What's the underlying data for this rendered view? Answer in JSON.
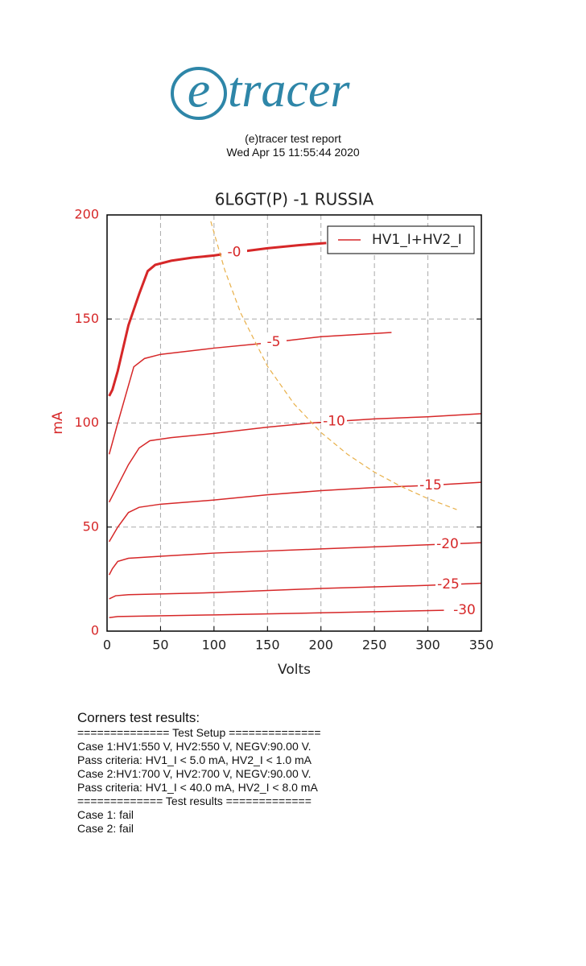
{
  "logo": {
    "e": "e",
    "text": "tracer"
  },
  "header": {
    "title": "(e)tracer test report",
    "date": "Wed Apr 15 11:55:44 2020"
  },
  "chart_data": {
    "type": "line",
    "title": "6L6GT(P) -1 RUSSIA",
    "x_label": "Volts",
    "y_label": "mA",
    "xlim": [
      0,
      350
    ],
    "xticks": [
      0,
      50,
      100,
      150,
      200,
      250,
      300,
      350
    ],
    "ylim": [
      0,
      200
    ],
    "yticks": [
      0,
      50,
      100,
      150,
      200
    ],
    "grid": true,
    "legend": {
      "label": "HV1_I+HV2_I",
      "color": "#d62728",
      "position": "upper right"
    },
    "series": [
      {
        "name": "-0",
        "color": "#d62728",
        "width": 3,
        "x": [
          2,
          5,
          10,
          20,
          30,
          38,
          45,
          60,
          80,
          100,
          120,
          150,
          180,
          205
        ],
        "values": [
          113,
          116,
          125,
          147,
          162,
          173,
          176,
          178,
          179.5,
          180.5,
          182,
          184,
          185.5,
          186.5
        ]
      },
      {
        "name": "-5",
        "color": "#d62728",
        "width": 1.5,
        "x": [
          2,
          10,
          20,
          25,
          35,
          50,
          100,
          150,
          200,
          266
        ],
        "values": [
          85,
          100,
          118,
          127,
          131,
          133,
          136,
          138.5,
          141.5,
          143.5
        ]
      },
      {
        "name": "-10",
        "color": "#d62728",
        "width": 1.5,
        "x": [
          2,
          10,
          20,
          30,
          40,
          60,
          100,
          150,
          190,
          250,
          300,
          350
        ],
        "values": [
          62,
          70,
          80,
          88,
          91.5,
          93,
          95,
          98,
          100,
          102,
          103,
          104.5
        ]
      },
      {
        "name": "-15",
        "color": "#d62728",
        "width": 1.5,
        "x": [
          2,
          10,
          20,
          30,
          50,
          100,
          150,
          200,
          250,
          300,
          350
        ],
        "values": [
          43,
          50,
          57,
          59.5,
          61,
          63,
          65.5,
          67.5,
          69,
          70,
          71.5
        ]
      },
      {
        "name": "-20",
        "color": "#d62728",
        "width": 1.5,
        "x": [
          2,
          5,
          10,
          20,
          50,
          100,
          200,
          300,
          350
        ],
        "values": [
          27,
          30,
          33.5,
          35,
          36,
          37.5,
          39.5,
          41.5,
          42.5
        ]
      },
      {
        "name": "-25",
        "color": "#d62728",
        "width": 1.5,
        "x": [
          2,
          8,
          20,
          100,
          200,
          300,
          350
        ],
        "values": [
          15.5,
          17,
          17.5,
          18.5,
          20.5,
          22,
          23
        ]
      },
      {
        "name": "-30",
        "color": "#d62728",
        "width": 1.5,
        "x": [
          2,
          10,
          100,
          200,
          315
        ],
        "values": [
          6.5,
          7,
          7.8,
          8.8,
          10
        ]
      },
      {
        "color": "#e8b04a",
        "width": 1.2,
        "dashed": true,
        "x": [
          97,
          110,
          125,
          150,
          175,
          200,
          225,
          250,
          275,
          300,
          327
        ],
        "values": [
          196.9,
          173.6,
          152.8,
          127.3,
          109.1,
          95.5,
          84.9,
          76.4,
          69.5,
          63.7,
          58.4
        ]
      }
    ]
  },
  "report": {
    "title": "Corners test results:",
    "lines": [
      "============== Test Setup ==============",
      "Case 1:HV1:550 V, HV2:550 V, NEGV:90.00 V.",
      "Pass criteria: HV1_I < 5.0 mA, HV2_I < 1.0 mA",
      "Case 2:HV1:700 V, HV2:700 V, NEGV:90.00 V.",
      "Pass criteria: HV1_I < 40.0 mA, HV2_I < 8.0 mA",
      "============= Test results =============",
      "Case 1: fail",
      "Case 2: fail"
    ]
  }
}
